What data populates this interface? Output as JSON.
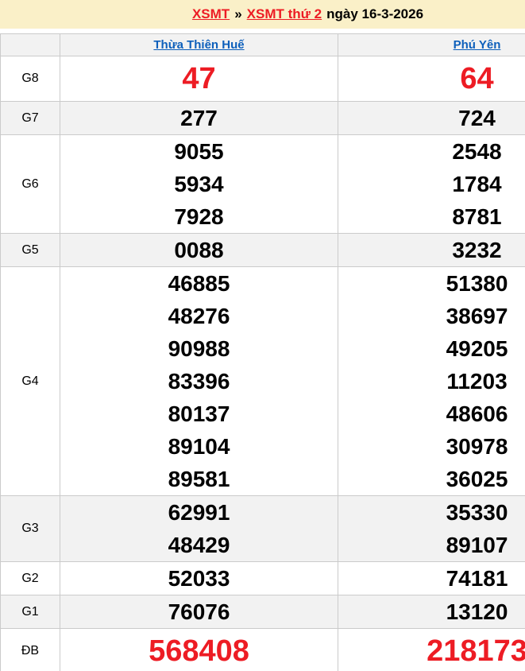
{
  "title": {
    "link1": "XSMT",
    "separator": "»",
    "link2": "XSMT thứ 2",
    "suffix": "ngày 16-3-2026"
  },
  "columns": [
    "Thừa Thiên Huế",
    "Phú Yên"
  ],
  "prizes": [
    {
      "id": "g8",
      "label": "G8",
      "highlight": true,
      "shade": false,
      "thua_thien_hue": [
        "47"
      ],
      "phu_yen": [
        "64"
      ]
    },
    {
      "id": "g7",
      "label": "G7",
      "highlight": false,
      "shade": true,
      "thua_thien_hue": [
        "277"
      ],
      "phu_yen": [
        "724"
      ]
    },
    {
      "id": "g6",
      "label": "G6",
      "highlight": false,
      "shade": false,
      "thua_thien_hue": [
        "9055",
        "5934",
        "7928"
      ],
      "phu_yen": [
        "2548",
        "1784",
        "8781"
      ]
    },
    {
      "id": "g5",
      "label": "G5",
      "highlight": false,
      "shade": true,
      "thua_thien_hue": [
        "0088"
      ],
      "phu_yen": [
        "3232"
      ]
    },
    {
      "id": "g4",
      "label": "G4",
      "highlight": false,
      "shade": false,
      "thua_thien_hue": [
        "46885",
        "48276",
        "90988",
        "83396",
        "80137",
        "89104",
        "89581"
      ],
      "phu_yen": [
        "51380",
        "38697",
        "49205",
        "11203",
        "48606",
        "30978",
        "36025"
      ]
    },
    {
      "id": "g3",
      "label": "G3",
      "highlight": false,
      "shade": true,
      "thua_thien_hue": [
        "62991",
        "48429"
      ],
      "phu_yen": [
        "35330",
        "89107"
      ]
    },
    {
      "id": "g2",
      "label": "G2",
      "highlight": false,
      "shade": false,
      "thua_thien_hue": [
        "52033"
      ],
      "phu_yen": [
        "74181"
      ]
    },
    {
      "id": "g1",
      "label": "G1",
      "highlight": false,
      "shade": true,
      "thua_thien_hue": [
        "76076"
      ],
      "phu_yen": [
        "13120"
      ]
    },
    {
      "id": "db",
      "label": "ĐB",
      "highlight": true,
      "shade": false,
      "thua_thien_hue": [
        "568408"
      ],
      "phu_yen": [
        "218173"
      ]
    }
  ],
  "colors": {
    "accent_red": "#ED1C24",
    "link_blue": "#0D5FBB",
    "header_yellow": "#FAF0C8",
    "row_shade": "#F2F2F2",
    "border": "#CBCBCB"
  }
}
